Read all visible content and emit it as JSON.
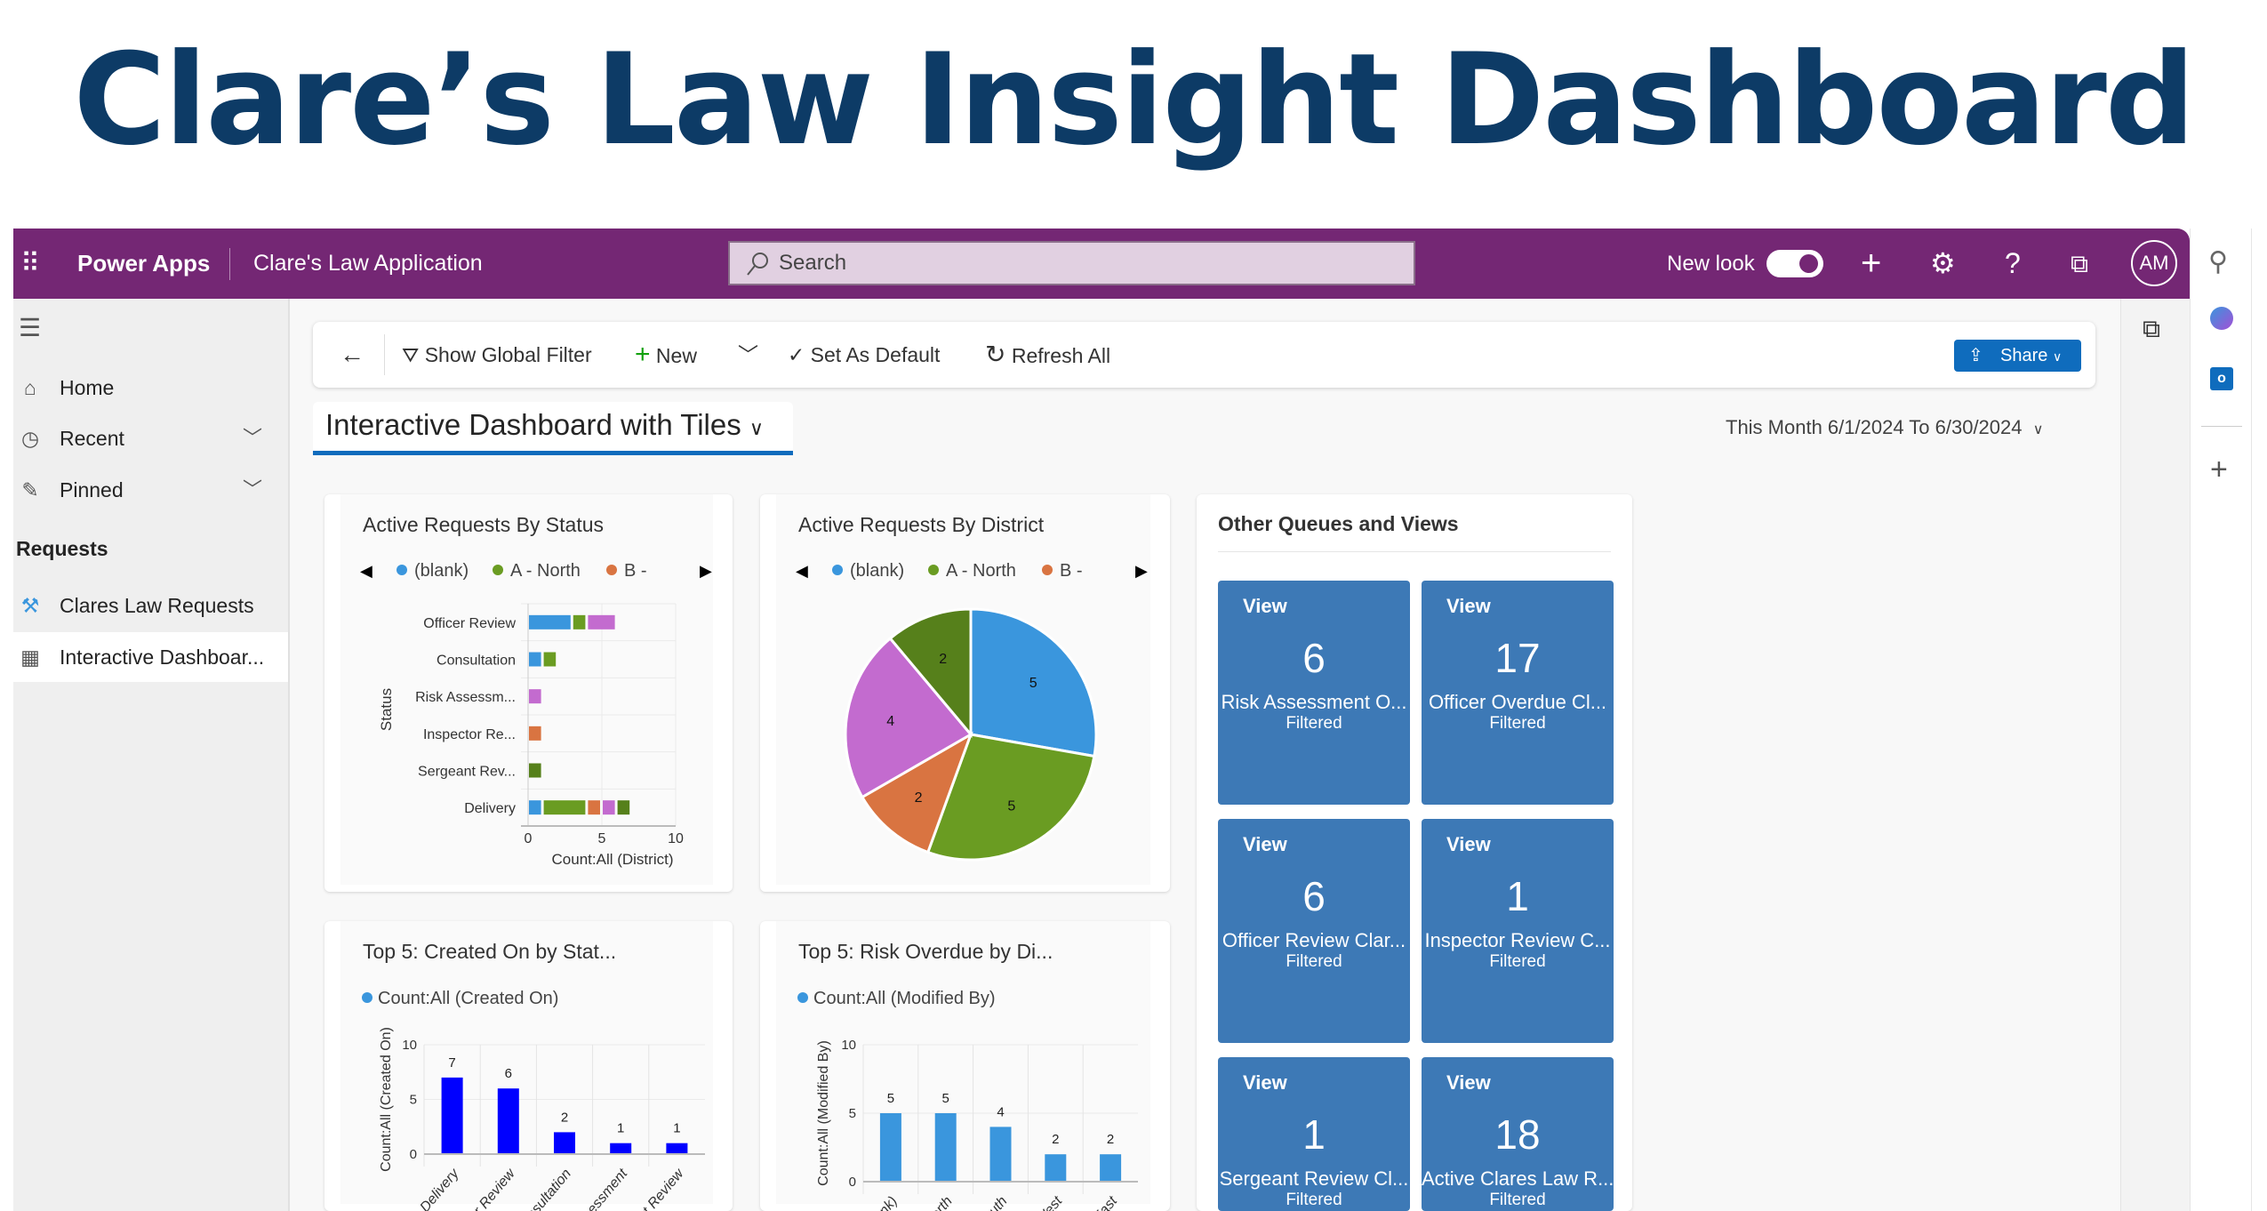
{
  "page_title": "Clare’s Law Insight Dashboard",
  "topbar": {
    "app_launcher_icon": "waffle-icon",
    "product": "Power Apps",
    "app_name": "Clare's Law Application",
    "search_placeholder": "Search",
    "new_look_label": "New look",
    "new_look_on": true,
    "avatar_initials": "AM",
    "color": "#742774"
  },
  "sidebar": {
    "items": [
      {
        "label": "Home",
        "icon": "home-icon"
      },
      {
        "label": "Recent",
        "icon": "clock-icon"
      },
      {
        "label": "Pinned",
        "icon": "pin-icon"
      }
    ],
    "section": "Requests",
    "section_items": [
      {
        "label": "Clares Law Requests",
        "icon": "gavel-icon"
      },
      {
        "label": "Interactive Dashboar...",
        "icon": "dashboard-icon",
        "selected": true
      }
    ]
  },
  "commandbar": {
    "show_global_filter": "Show Global Filter",
    "new": "New",
    "set_as_default": "Set As Default",
    "refresh_all": "Refresh All",
    "share": "Share"
  },
  "dashboard": {
    "name": "Interactive Dashboard with Tiles",
    "date_range": "This Month 6/1/2024 To 6/30/2024"
  },
  "chart_data": [
    {
      "type": "bar",
      "orientation": "horizontal",
      "stacked": true,
      "title": "Active Requests By Status",
      "ylabel": "Status",
      "xlabel": "Count:All (District)",
      "xlim": [
        0,
        10
      ],
      "xticks": [
        0,
        5,
        10
      ],
      "categories": [
        "Officer Review",
        "Consultation",
        "Risk Assessm...",
        "Inspector Re...",
        "Sergeant Rev...",
        "Delivery"
      ],
      "legend": [
        "(blank)",
        "A - North",
        "B -"
      ],
      "series": [
        {
          "name": "(blank)",
          "color": "#3a96dd",
          "values": [
            3,
            1,
            0,
            0,
            0,
            1
          ]
        },
        {
          "name": "A - North",
          "color": "#6a9c22",
          "values": [
            1,
            1,
            0,
            0,
            0,
            3
          ]
        },
        {
          "name": "B -",
          "color": "#d97441",
          "values": [
            0,
            0,
            0,
            1,
            0,
            1
          ]
        },
        {
          "color": "#c36bcf",
          "values": [
            2,
            0,
            1,
            0,
            0,
            1
          ]
        },
        {
          "color": "#56801b",
          "values": [
            0,
            0,
            0,
            0,
            1,
            1
          ]
        }
      ]
    },
    {
      "type": "pie",
      "title": "Active Requests By District",
      "legend": [
        "(blank)",
        "A - North",
        "B -"
      ],
      "slices": [
        {
          "label": "(blank)",
          "value": 5,
          "color": "#3a96dd"
        },
        {
          "label": "A - North",
          "value": 5,
          "color": "#6a9c22"
        },
        {
          "label": "B -",
          "value": 2,
          "color": "#d97441"
        },
        {
          "value": 4,
          "color": "#c36bcf"
        },
        {
          "value": 2,
          "color": "#56801b"
        }
      ]
    },
    {
      "type": "bar",
      "title": "Top 5: Created On by Stat...",
      "legend": [
        "Count:All (Created On)"
      ],
      "ylabel": "Count:All (Created On)",
      "ylim": [
        0,
        10
      ],
      "yticks": [
        0,
        5,
        10
      ],
      "color": "#0000ff",
      "categories": [
        "Delivery",
        "Officer Review",
        "Consultation",
        "Risk Assessment",
        "Sergeant Review"
      ],
      "values": [
        7,
        6,
        2,
        1,
        1
      ]
    },
    {
      "type": "bar",
      "title": "Top 5: Risk Overdue by Di...",
      "legend": [
        "Count:All (Modified By)"
      ],
      "ylabel": "Count:All (Modified By)",
      "ylim": [
        0,
        10
      ],
      "yticks": [
        0,
        5,
        10
      ],
      "color": "#3a96dd",
      "categories": [
        "(blank)",
        "North",
        "South",
        "West",
        "- East"
      ],
      "values": [
        5,
        5,
        4,
        2,
        2
      ]
    }
  ],
  "tiles": {
    "title": "Other Queues and Views",
    "color": "#3d79b6",
    "items": [
      {
        "label": "View",
        "count": "6",
        "name": "Risk Assessment O...",
        "status": "Filtered"
      },
      {
        "label": "View",
        "count": "17",
        "name": "Officer Overdue Cl...",
        "status": "Filtered"
      },
      {
        "label": "View",
        "count": "6",
        "name": "Officer Review Clar...",
        "status": "Filtered"
      },
      {
        "label": "View",
        "count": "1",
        "name": "Inspector Review C...",
        "status": "Filtered"
      },
      {
        "label": "View",
        "count": "1",
        "name": "Sergeant Review Cl...",
        "status": "Filtered"
      },
      {
        "label": "View",
        "count": "18",
        "name": "Active Clares Law R...",
        "status": "Filtered"
      }
    ]
  }
}
